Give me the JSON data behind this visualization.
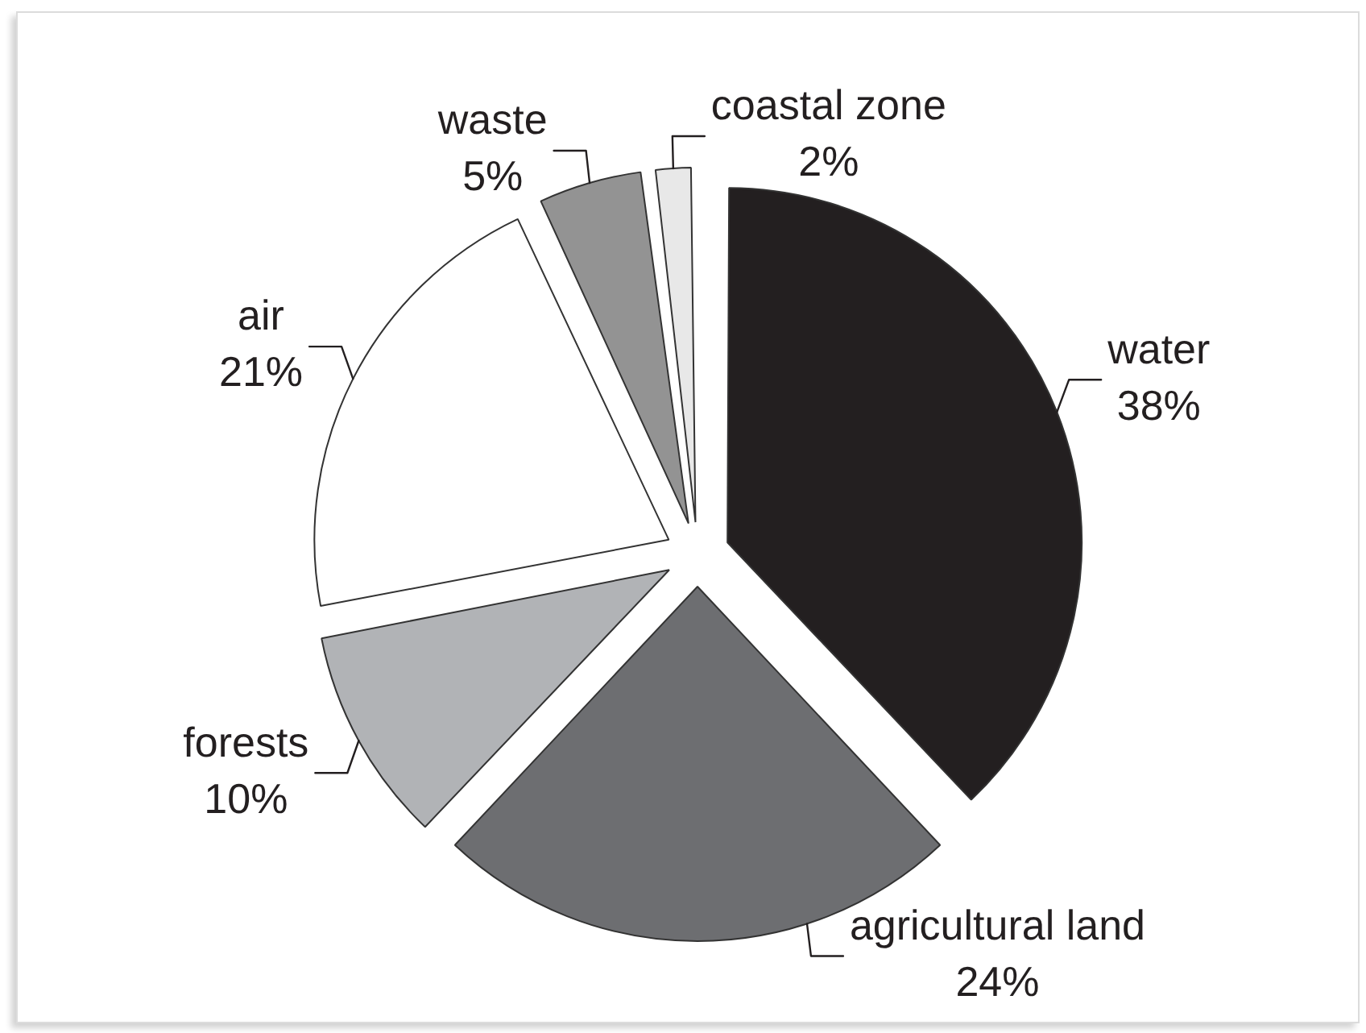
{
  "chart_data": {
    "type": "pie",
    "categories": [
      "water",
      "agricultural land",
      "forests",
      "air",
      "waste",
      "coastal zone"
    ],
    "values": [
      38,
      24,
      10,
      21,
      5,
      2
    ],
    "value_labels": [
      "38%",
      "24%",
      "10%",
      "21%",
      "5%",
      "2%"
    ],
    "colors": [
      "#231f20",
      "#6d6e71",
      "#b1b3b6",
      "#ffffff",
      "#939393",
      "#e8e8e8"
    ]
  }
}
